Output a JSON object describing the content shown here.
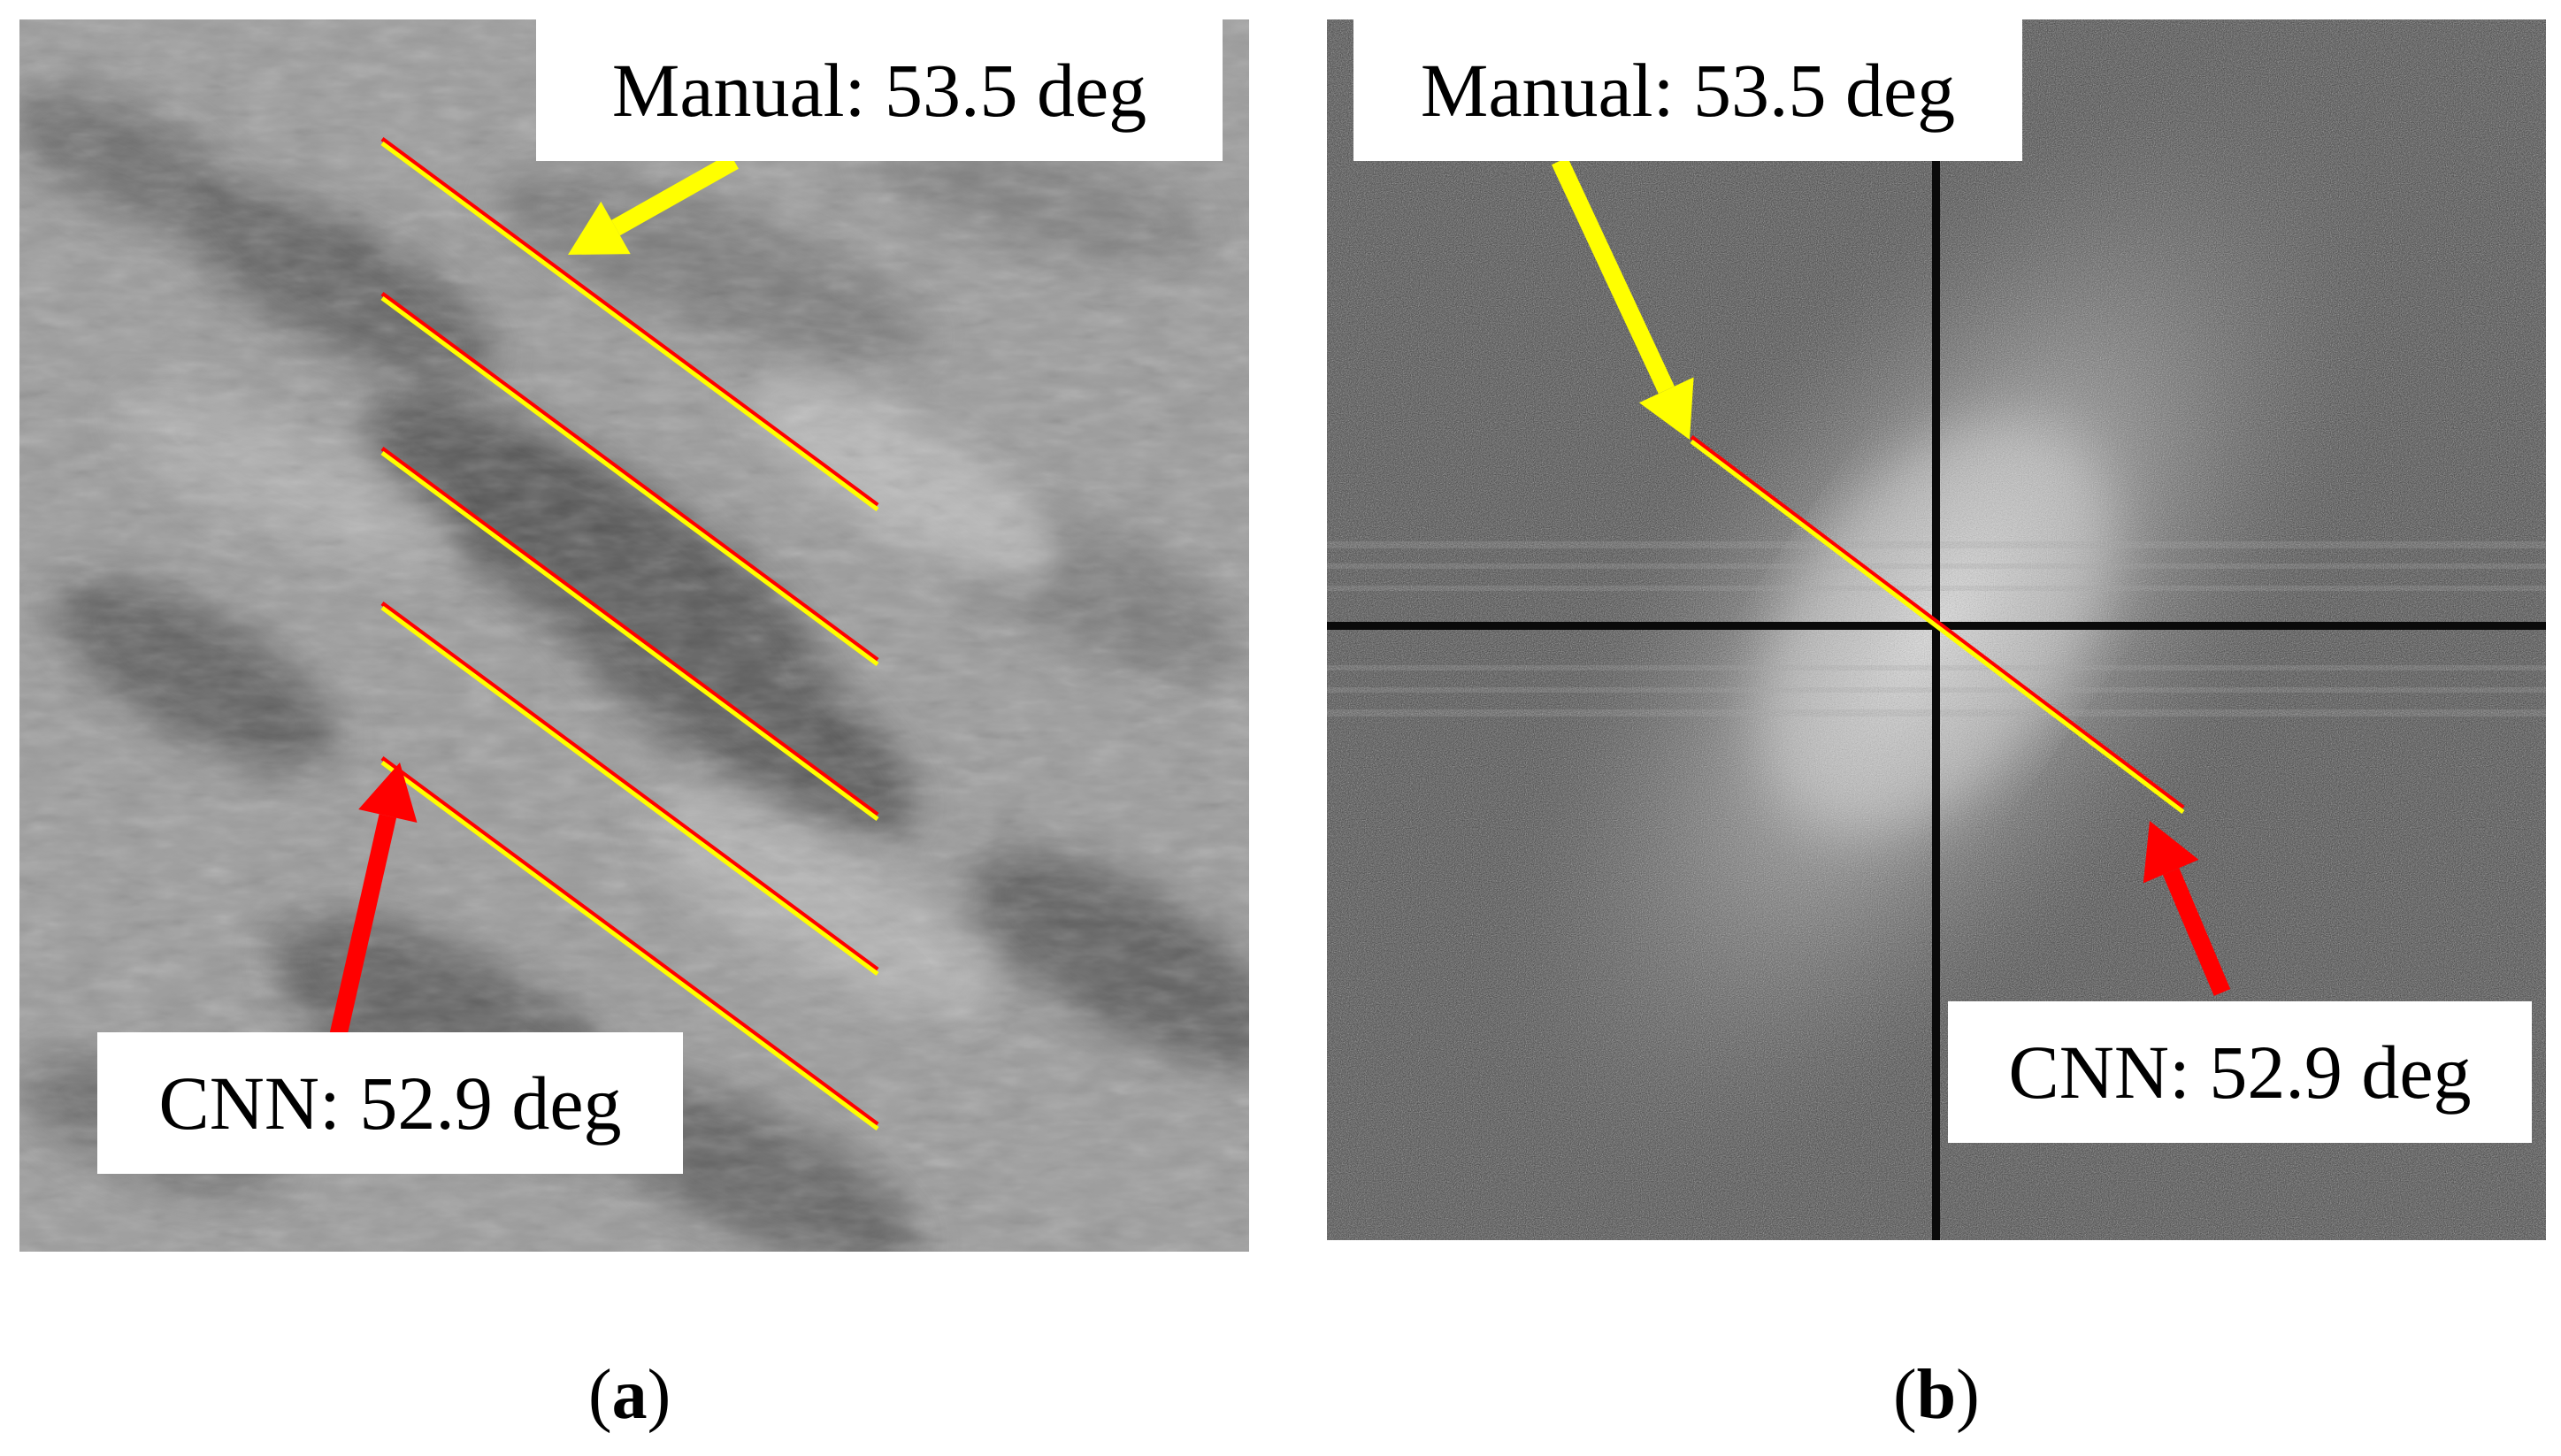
{
  "figure": {
    "panels": [
      {
        "id": "a",
        "caption_letter": "a",
        "manual_label": "Manual: 53.5 deg",
        "cnn_label": "CNN: 52.9 deg",
        "manual_color": "#ffff00",
        "cnn_color": "#ff0000"
      },
      {
        "id": "b",
        "caption_letter": "b",
        "manual_label": "Manual: 53.5 deg",
        "cnn_label": "CNN: 52.9 deg",
        "manual_color": "#ffff00",
        "cnn_color": "#ff0000"
      }
    ]
  }
}
